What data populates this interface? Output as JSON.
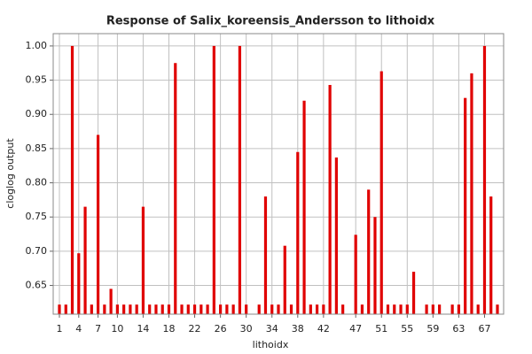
{
  "chart_data": {
    "type": "bar",
    "title": "Response of Salix_koreensis_Andersson to lithoidx",
    "x_label": "lithoidx",
    "y_label": "cloglog output",
    "categories": [
      "1",
      null,
      null,
      "4",
      null,
      null,
      "7",
      null,
      null,
      "10",
      null,
      null,
      null,
      "14",
      null,
      null,
      null,
      "18",
      null,
      null,
      null,
      "22",
      null,
      null,
      null,
      "26",
      null,
      null,
      null,
      "30",
      null,
      null,
      null,
      "34",
      null,
      null,
      null,
      "38",
      null,
      null,
      null,
      "42",
      null,
      null,
      null,
      null,
      "47",
      null,
      null,
      null,
      "51",
      null,
      null,
      null,
      "55",
      null,
      null,
      null,
      "59",
      null,
      null,
      null,
      "63",
      null,
      null,
      null,
      "67",
      null,
      null
    ],
    "values": [
      0.622,
      0.622,
      1.0,
      0.697,
      0.765,
      0.622,
      0.87,
      0.622,
      0.645,
      0.622,
      0.622,
      0.622,
      0.622,
      0.765,
      0.622,
      0.622,
      0.622,
      0.622,
      0.975,
      0.622,
      0.622,
      0.622,
      0.622,
      0.622,
      1.0,
      0.622,
      0.622,
      0.622,
      1.0,
      0.622,
      null,
      0.622,
      0.78,
      0.622,
      0.622,
      0.708,
      0.622,
      0.845,
      0.92,
      0.622,
      0.622,
      0.622,
      0.943,
      0.837,
      0.622,
      null,
      0.724,
      0.622,
      0.79,
      0.75,
      0.963,
      0.622,
      0.622,
      0.622,
      0.622,
      0.67,
      null,
      0.622,
      0.622,
      0.622,
      null,
      0.622,
      0.622,
      0.924,
      0.96,
      0.622,
      1.0,
      0.78,
      0.622
    ],
    "color": "#e00000",
    "ylim": [
      0.608,
      1.018
    ],
    "yticks": [
      0.65,
      {
        "value": 0.7,
        "label": "0.70"
      },
      0.75,
      {
        "value": 0.8,
        "label": "0.80"
      },
      0.85,
      {
        "value": 0.9,
        "label": "0.90"
      },
      0.95,
      {
        "value": 1.0,
        "label": "1.00"
      }
    ],
    "grid": true
  }
}
